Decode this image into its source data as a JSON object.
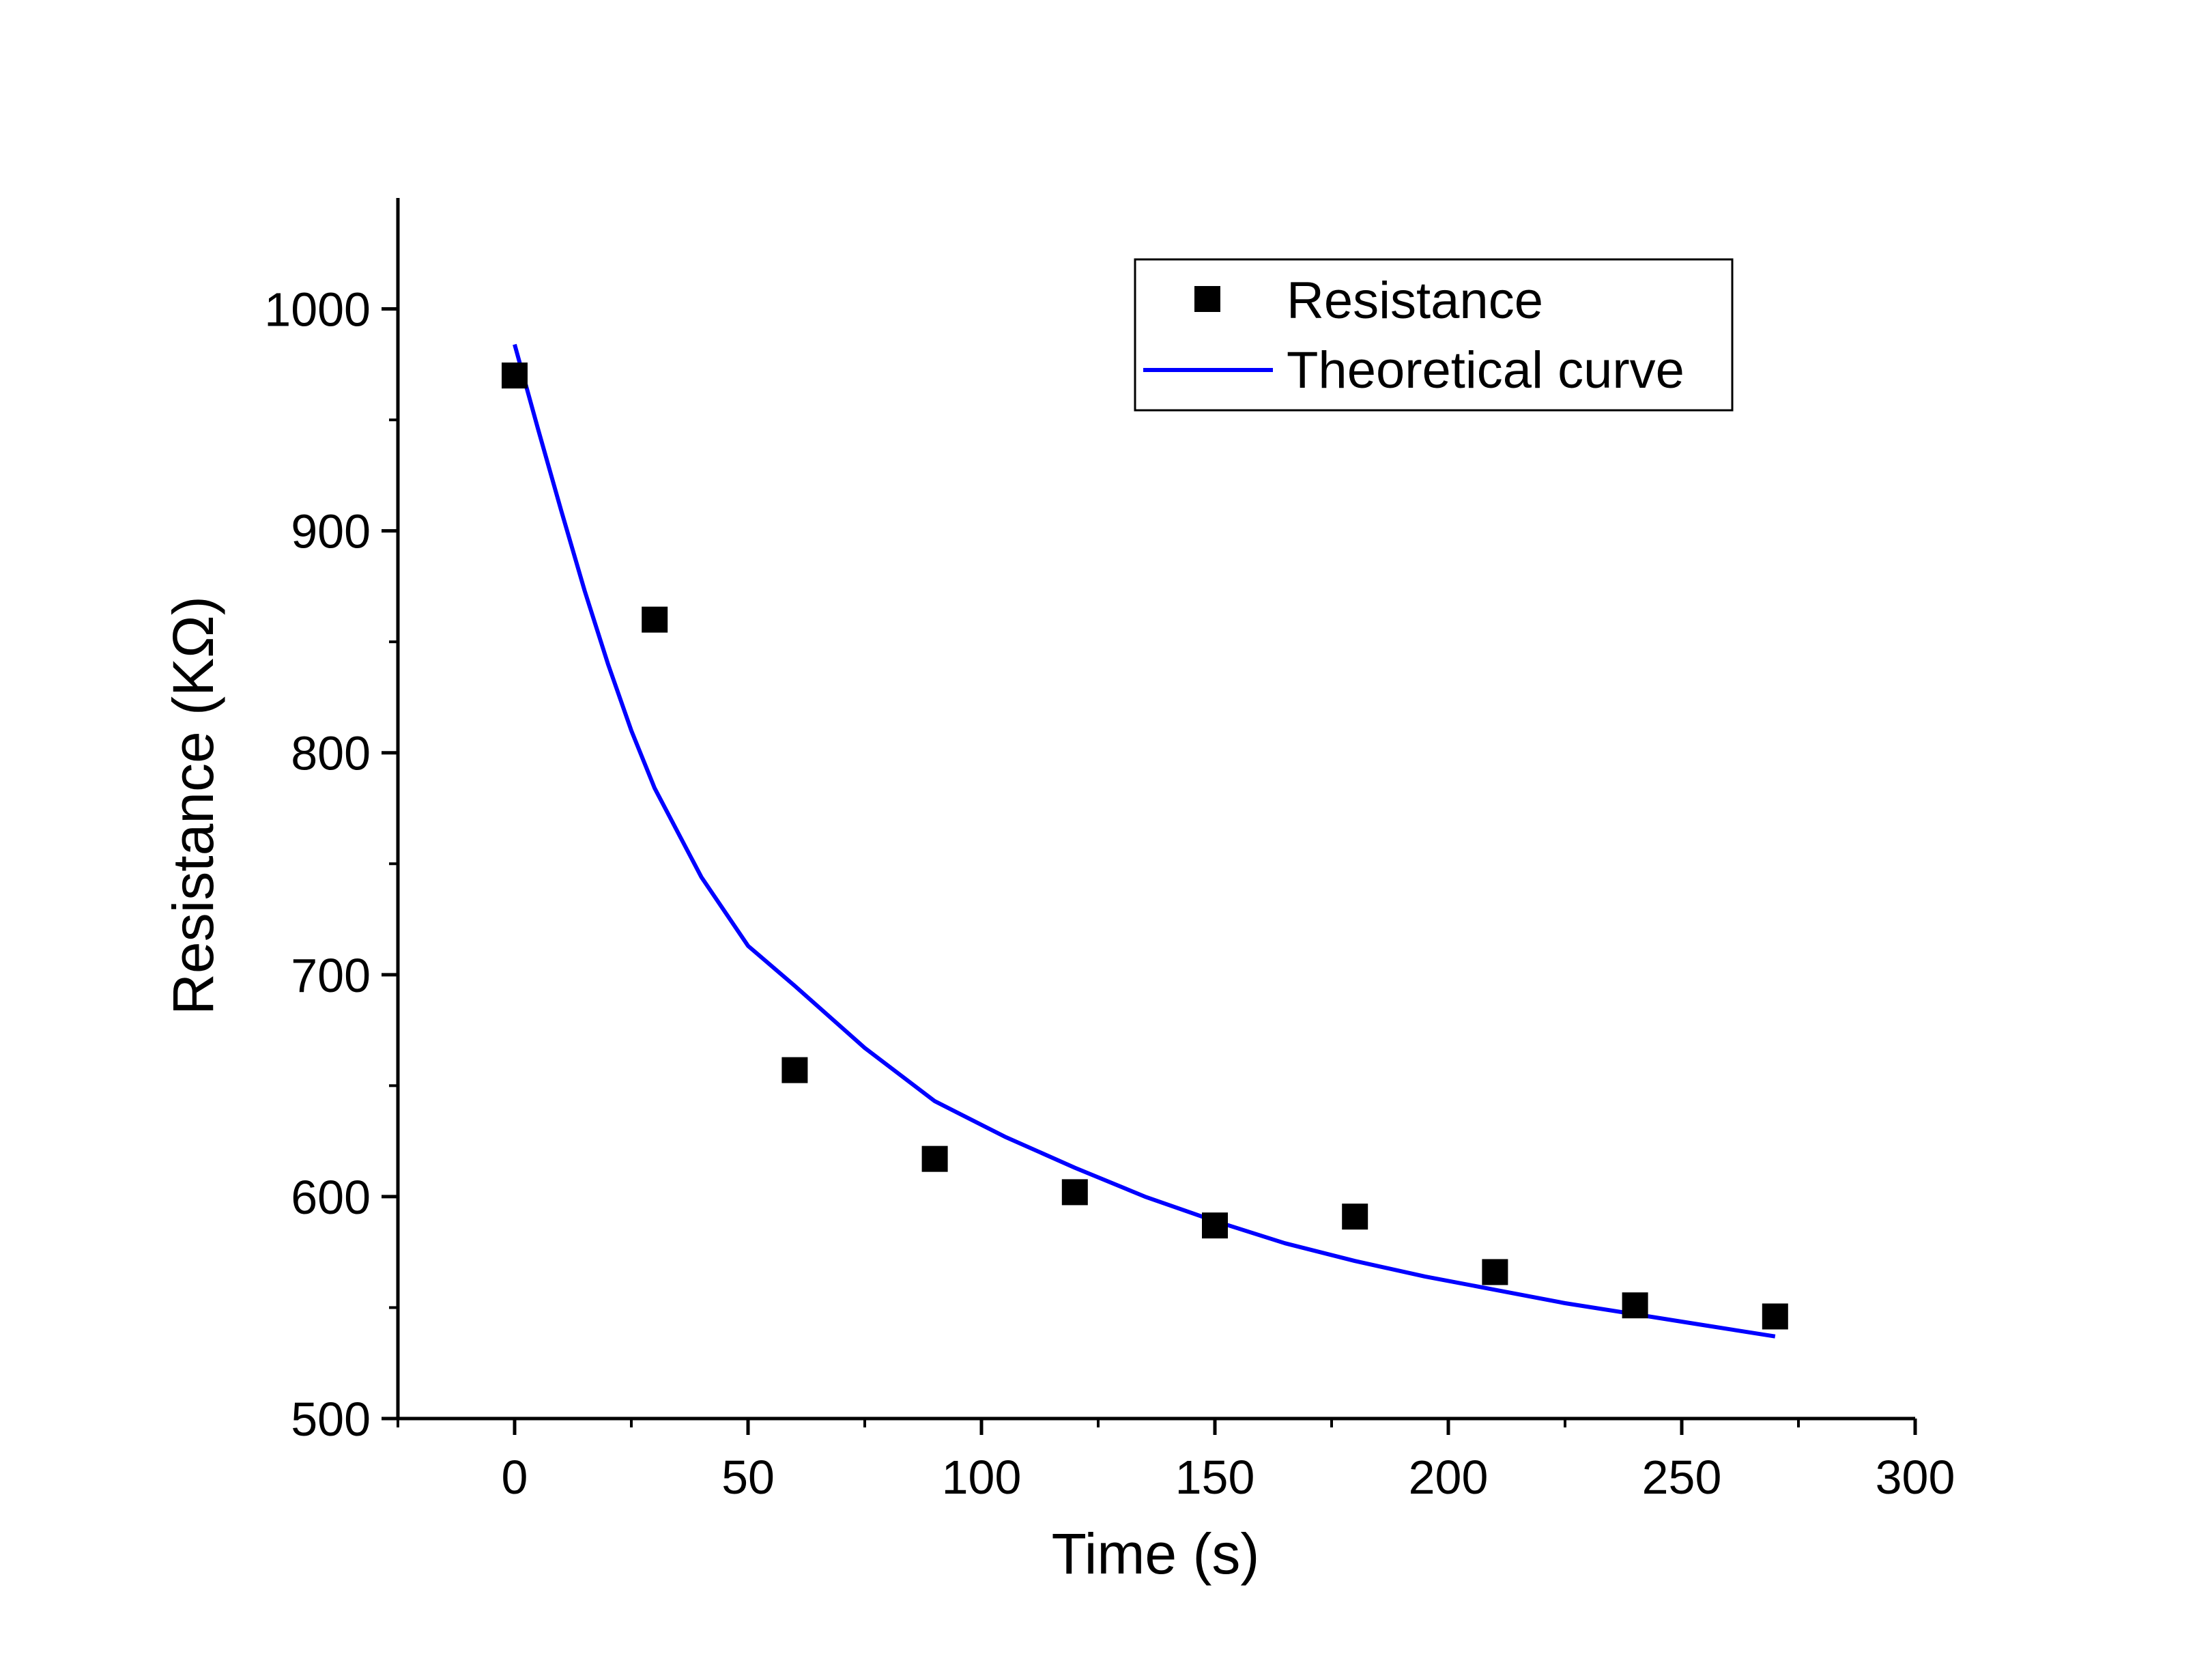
{
  "chart_data": {
    "type": "scatter",
    "title": "",
    "xlabel": "Time (s)",
    "ylabel": "Resistance (KΩ)",
    "xlim": [
      -25,
      300
    ],
    "ylim": [
      500,
      1050
    ],
    "x_ticks": [
      0,
      50,
      100,
      150,
      200,
      250,
      300
    ],
    "x_minor_ticks": [
      -25,
      25,
      75,
      125,
      175,
      225,
      275
    ],
    "y_ticks": [
      500,
      600,
      700,
      800,
      900,
      1000
    ],
    "y_minor_ticks": [
      550,
      650,
      750,
      850,
      950
    ],
    "grid": false,
    "legend_position": "top-right",
    "series": [
      {
        "name": "Resistance",
        "kind": "scatter",
        "marker": "square",
        "color": "#000000",
        "x": [
          0,
          30,
          60,
          90,
          120,
          150,
          180,
          210,
          240,
          270
        ],
        "y": [
          970,
          860,
          657,
          617,
          602,
          587,
          591,
          566,
          551,
          546
        ]
      },
      {
        "name": "Theoretical curve",
        "kind": "line",
        "color": "#0000ff",
        "x": [
          0,
          5,
          10,
          15,
          20,
          25,
          30,
          40,
          50,
          60,
          75,
          90,
          105,
          120,
          135,
          150,
          165,
          180,
          195,
          210,
          225,
          240,
          255,
          270
        ],
        "y": [
          984,
          946,
          909,
          873,
          840,
          810,
          784,
          744,
          713,
          695,
          667,
          643,
          627,
          613,
          600,
          589,
          579,
          571,
          564,
          558,
          552,
          547,
          542,
          537
        ]
      }
    ]
  }
}
